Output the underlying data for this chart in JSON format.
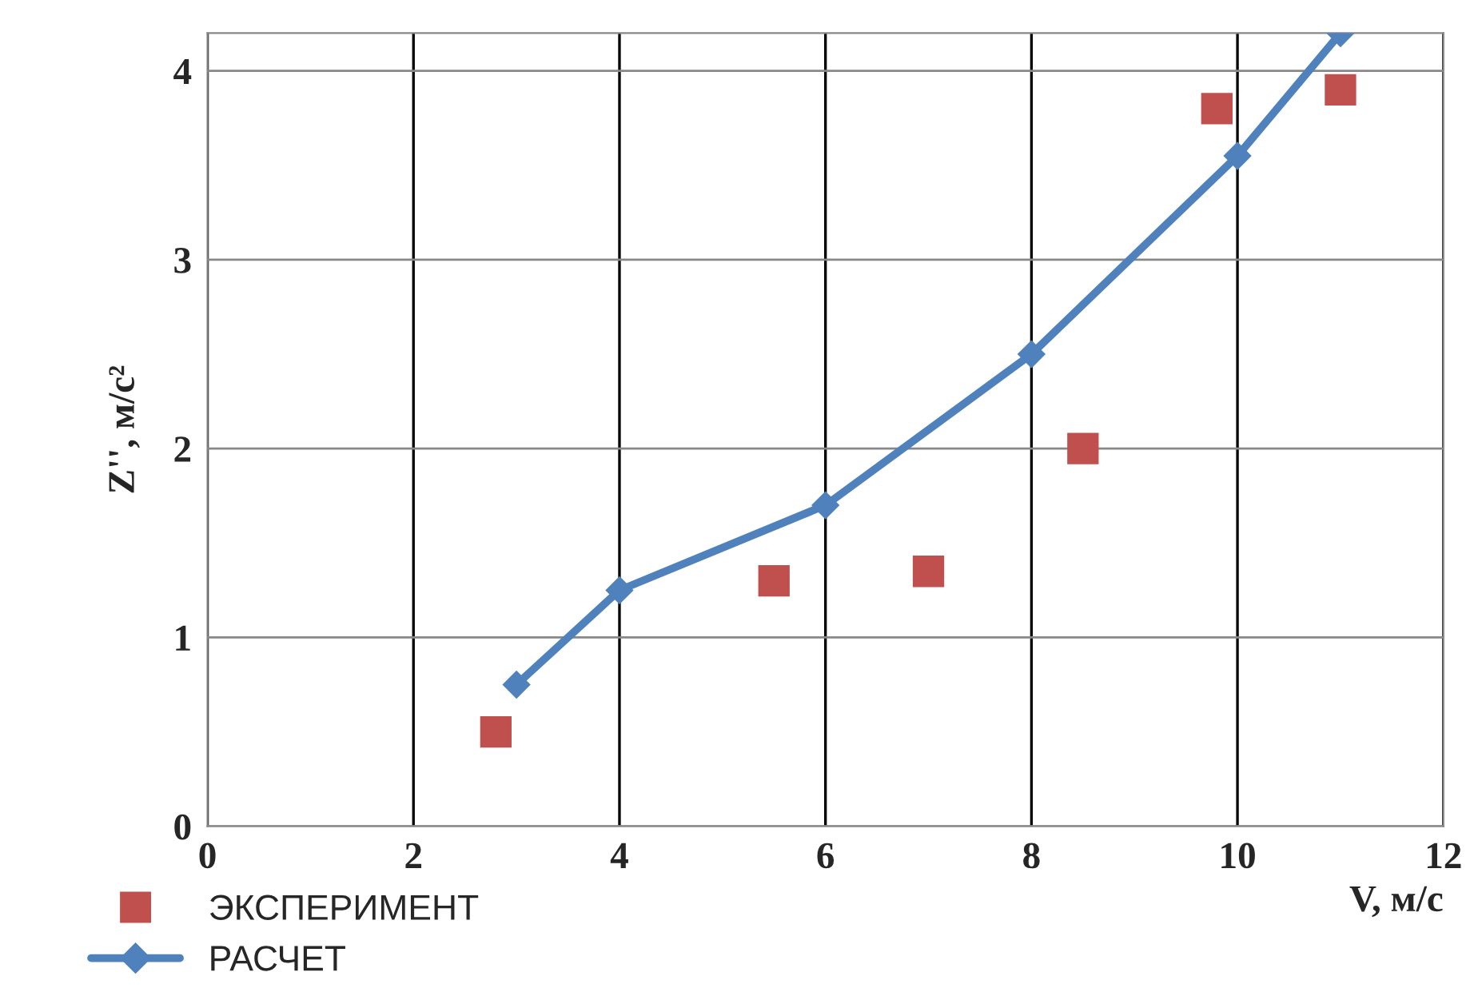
{
  "chart_data": {
    "type": "scatter",
    "xlabel": "V, м/с",
    "ylabel": "Z'', м/с²",
    "xlim": [
      0,
      12
    ],
    "ylim": [
      0,
      4.2
    ],
    "xticks": [
      0,
      2,
      4,
      6,
      8,
      10,
      12
    ],
    "yticks": [
      0,
      1,
      2,
      3,
      4
    ],
    "grid": true,
    "legend": "bottom left",
    "series": [
      {
        "name": "ЭКСПЕРИМЕНТ",
        "marker": "square",
        "color": "#c0504d",
        "x": [
          2.8,
          5.5,
          7,
          8.5,
          9.8,
          11
        ],
        "values": [
          0.5,
          1.3,
          1.35,
          2.0,
          3.8,
          3.9
        ]
      },
      {
        "name": "РАСЧЕТ",
        "type": "line",
        "marker": "diamond",
        "line_style": "solid",
        "color": "#4f81bd",
        "x": [
          3,
          4,
          6,
          8,
          10,
          11
        ],
        "values": [
          0.75,
          1.25,
          1.7,
          2.5,
          3.55,
          4.2
        ]
      }
    ]
  }
}
